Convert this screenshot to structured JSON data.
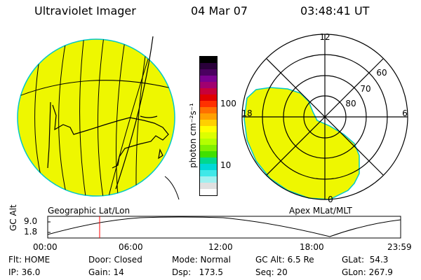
{
  "header": {
    "title": "Ultraviolet Imager",
    "date": "04 Mar 07",
    "time": "03:48:41 UT"
  },
  "geo_panel": {
    "label": "Geographic Lat/Lon",
    "fill_color": "#eef700",
    "edge_color": "#00c8c8"
  },
  "colorbar": {
    "unit_label": "photon cm⁻²s⁻¹",
    "ticks": [
      "100",
      "10"
    ],
    "colors": [
      "#000000",
      "#2a003a",
      "#4a0060",
      "#7a0090",
      "#a00070",
      "#c8003a",
      "#e00000",
      "#ff3000",
      "#ff7000",
      "#ffa000",
      "#ffd000",
      "#ffff00",
      "#dcff00",
      "#b4ff00",
      "#80f000",
      "#40e000",
      "#00d890",
      "#00d8d8",
      "#40e8e8",
      "#a0f0f0",
      "#e0e0e0",
      "#ffffff"
    ]
  },
  "polar_panel": {
    "label": "Apex MLat/MLT",
    "mlt_labels": {
      "top": "12",
      "left": "18",
      "right": "6",
      "bottom": "0"
    },
    "lat_labels": [
      "60",
      "70",
      "80"
    ]
  },
  "altitude_plot": {
    "ylabel": "GC Alt",
    "yticks": [
      "9.0",
      "1.8"
    ],
    "xticks": [
      "00:00",
      "06:00",
      "12:00",
      "18:00",
      "23:59"
    ],
    "marker_color": "#ff0000"
  },
  "info": {
    "flt": "Flt: HOME",
    "ip": "IP: 36.0",
    "door": "Door: Closed",
    "gain": "Gain: 14",
    "mode": "Mode: Normal",
    "dsp": "Dsp:   173.5",
    "gc_alt": "GC Alt: 6.5 Re",
    "seq": "Seq: 20",
    "glat": "GLat:  54.3",
    "glon": "GLon: 267.9"
  }
}
